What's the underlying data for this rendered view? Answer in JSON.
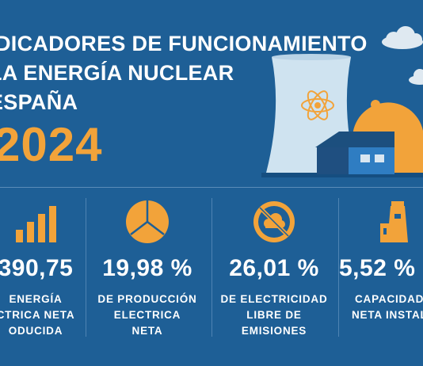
{
  "title": {
    "line1": "DICADORES DE FUNCIONAMIENTO",
    "line2": "LA ENERGÍA NUCLEAR",
    "line3": "ESPAÑA",
    "year": "2024"
  },
  "colors": {
    "background": "#1e5f96",
    "accent": "#f2a33a",
    "tower": "#cfe3f0",
    "house": "#2f7dc2"
  },
  "stats": [
    {
      "icon": "bar-chart-icon",
      "value": "390,75",
      "label_lines": [
        "ENERGÍA",
        "CTRICA NETA",
        "ODUCIDA"
      ]
    },
    {
      "icon": "pie-chart-icon",
      "value": "19,98 %",
      "label_lines": [
        "DE PRODUCCIÓN",
        "ELECTRICA",
        "NETA"
      ]
    },
    {
      "icon": "no-emissions-icon",
      "value": "26,01 %",
      "label_lines": [
        "DE ELECTRICIDAD",
        "LIBRE DE",
        "EMISIONES"
      ]
    },
    {
      "icon": "power-plant-icon",
      "value": "5,52 %",
      "label_lines": [
        "CAPACIDAD",
        "NETA INSTALA"
      ]
    }
  ]
}
